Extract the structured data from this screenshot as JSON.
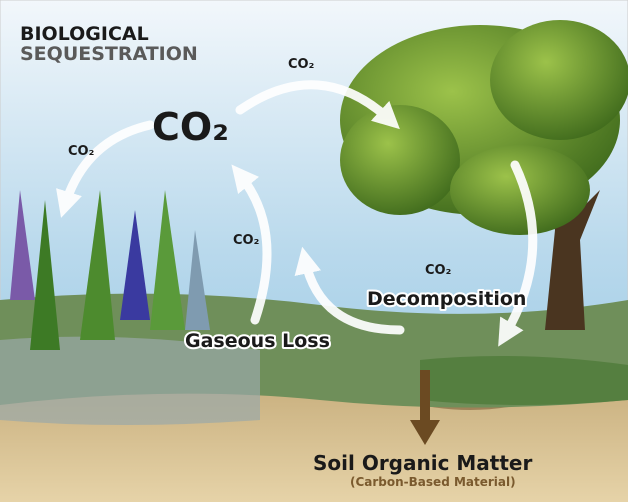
{
  "header": {
    "title_line1": "BIOLOGICAL",
    "title_line2": "SEQUESTRATION"
  },
  "labels": {
    "co2_center": "CO₂",
    "co2_top": "CO₂",
    "co2_left": "CO₂",
    "co2_middle": "CO₂",
    "co2_decomposition": "CO₂",
    "decomposition": "Decomposition",
    "gaseous_loss": "Gaseous Loss",
    "soil_organic_matter": "Soil Organic Matter",
    "carbon_based_material": "(Carbon-Based Material)"
  }
}
